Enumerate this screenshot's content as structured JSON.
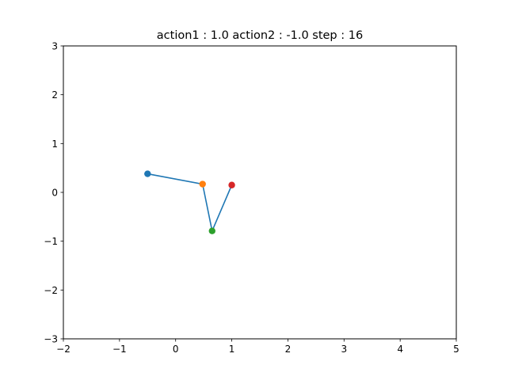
{
  "chart_data": {
    "type": "line",
    "title": "action1 : 1.0 action2 : -1.0 step : 16",
    "xlabel": "",
    "ylabel": "",
    "xlim": [
      -2,
      5
    ],
    "ylim": [
      -3,
      3
    ],
    "x_ticks": [
      -2,
      -1,
      0,
      1,
      2,
      3,
      4,
      5
    ],
    "x_tick_labels": [
      "−2",
      "−1",
      "0",
      "1",
      "2",
      "3",
      "4",
      "5"
    ],
    "y_ticks": [
      -3,
      -2,
      -1,
      0,
      1,
      2,
      3
    ],
    "y_tick_labels": [
      "−3",
      "−2",
      "−1",
      "0",
      "1",
      "2",
      "3"
    ],
    "grid": false,
    "line": {
      "color": "#1f77b4",
      "x": [
        -0.5,
        0.48,
        0.65,
        1.0
      ],
      "y": [
        0.38,
        0.17,
        -0.79,
        0.15
      ]
    },
    "points": [
      {
        "x": -0.5,
        "y": 0.38,
        "color": "#1f77b4"
      },
      {
        "x": 0.48,
        "y": 0.17,
        "color": "#ff7f0e"
      },
      {
        "x": 0.65,
        "y": -0.79,
        "color": "#2ca02c"
      },
      {
        "x": 1.0,
        "y": 0.15,
        "color": "#d62728"
      }
    ]
  }
}
